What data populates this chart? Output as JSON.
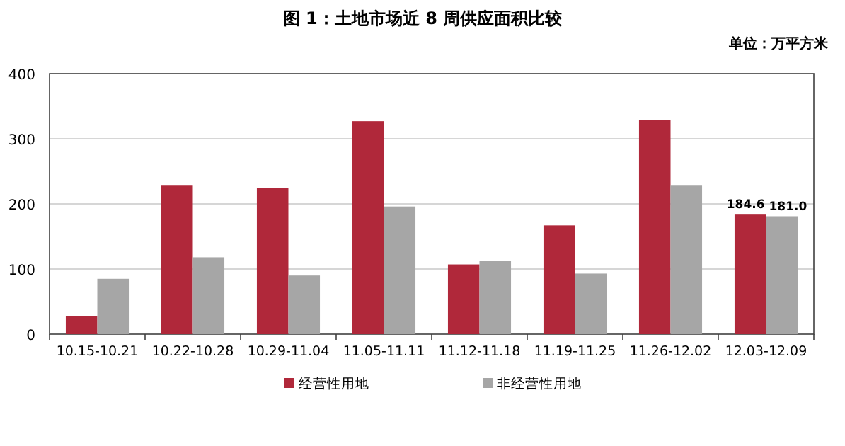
{
  "chart_data": {
    "type": "bar",
    "title": "图 1：土地市场近 8 周供应面积比较",
    "annotations": [
      "单位：万平方米"
    ],
    "categories": [
      "10.15-10.21",
      "10.22-10.28",
      "10.29-11.04",
      "11.05-11.11",
      "11.12-11.18",
      "11.19-11.25",
      "11.26-12.02",
      "12.03-12.09"
    ],
    "series": [
      {
        "name": "经营性用地",
        "color": "#b0283a",
        "values": [
          28,
          228,
          225,
          327,
          107,
          167,
          329,
          184.6
        ],
        "value_labels": [
          null,
          null,
          null,
          null,
          null,
          null,
          null,
          "184.6"
        ]
      },
      {
        "name": "非经营性用地",
        "color": "#a6a6a6",
        "values": [
          85,
          118,
          90,
          196,
          113,
          93,
          228,
          181.0
        ],
        "value_labels": [
          null,
          null,
          null,
          null,
          null,
          null,
          null,
          "181.0"
        ]
      }
    ],
    "ylim": [
      0,
      400
    ],
    "yticks": [
      0,
      100,
      200,
      300,
      400
    ],
    "grid": "y",
    "legend": "bottom"
  }
}
